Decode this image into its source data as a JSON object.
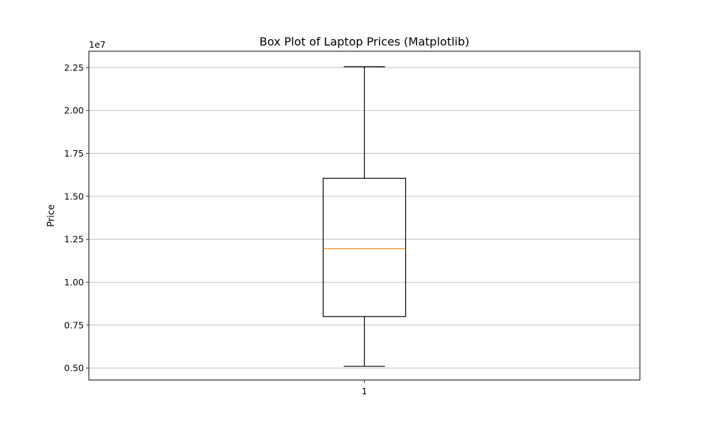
{
  "chart_data": {
    "type": "box",
    "title": "Box Plot of Laptop Prices (Matplotlib)",
    "xlabel": "",
    "ylabel": "Price",
    "y_offset_label": "1e7",
    "ylim": [
      4300000,
      23450000
    ],
    "y_ticks": [
      5000000,
      7500000,
      10000000,
      12500000,
      15000000,
      17500000,
      20000000,
      22500000
    ],
    "y_tick_labels": [
      "0.50",
      "0.75",
      "1.00",
      "1.25",
      "1.50",
      "1.75",
      "2.00",
      "2.25"
    ],
    "y_grid": true,
    "categories": [
      "1"
    ],
    "boxes": [
      {
        "category": "1",
        "whisker_low": 5100000,
        "q1": 8000000,
        "median": 11950000,
        "q3": 16050000,
        "whisker_high": 22550000
      }
    ],
    "colors": {
      "box": "#000000",
      "median": "#ff7f0e",
      "grid": "#b0b0b0"
    }
  }
}
